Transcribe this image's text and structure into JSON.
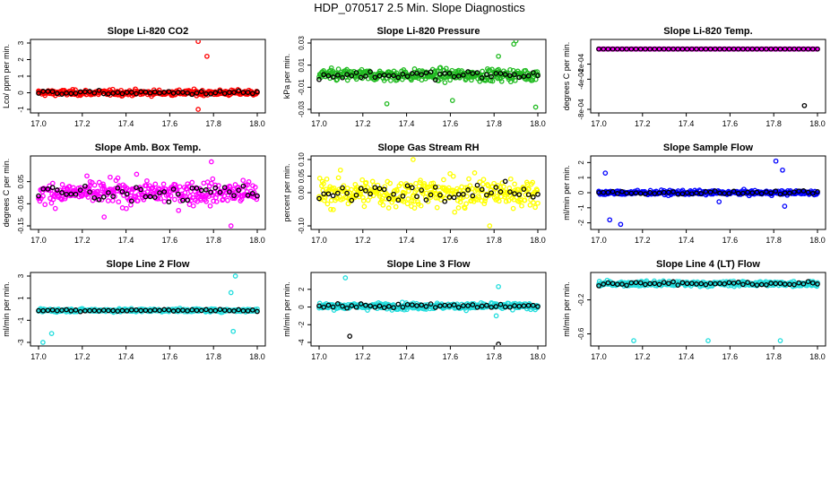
{
  "title": "HDP_070517  2.5 Min. Slope Diagnostics",
  "chart_data": [
    {
      "type": "scatter",
      "title": "Slope Li-820 CO2",
      "ylabel": "Lco/ ppm per min.",
      "xlim": [
        17.0,
        18.0
      ],
      "ylim": [
        -1,
        3
      ],
      "yticks": [
        "-1",
        "0",
        "1",
        "2",
        "3"
      ],
      "xticks": [
        "17.0",
        "17.2",
        "17.4",
        "17.6",
        "17.8",
        "18.0"
      ],
      "color": "#ff0000",
      "center": 0.0,
      "spread": 0.14,
      "outliers": [
        [
          17.73,
          3.1
        ],
        [
          17.77,
          2.2
        ],
        [
          17.73,
          -1.0
        ]
      ]
    },
    {
      "type": "scatter",
      "title": "Slope Li-820 Pressure",
      "ylabel": "kPa per min.",
      "xlim": [
        17.0,
        18.0
      ],
      "ylim": [
        -0.03,
        0.03
      ],
      "yticks": [
        "-0.03",
        "-0.01",
        "0.01",
        "0.03"
      ],
      "xticks": [
        "17.0",
        "17.2",
        "17.4",
        "17.6",
        "17.8",
        "18.0"
      ],
      "color": "#22bb22",
      "center": 0.001,
      "spread": 0.0045,
      "outliers": [
        [
          17.31,
          -0.025
        ],
        [
          17.61,
          -0.022
        ],
        [
          17.9,
          0.032
        ],
        [
          17.89,
          0.029
        ],
        [
          17.99,
          -0.028
        ],
        [
          17.82,
          0.018
        ]
      ]
    },
    {
      "type": "scatter",
      "title": "Slope Li-820 Temp.",
      "ylabel": "degrees C per min.",
      "xlim": [
        17.0,
        18.0
      ],
      "ylim": [
        -0.0008,
        8e-05
      ],
      "yticks": [
        "-8e-04",
        "-4e-04",
        "-2e-04"
      ],
      "xticks": [
        "17.0",
        "17.2",
        "17.4",
        "17.6",
        "17.8",
        "18.0"
      ],
      "color": "#ff00ff",
      "center": 0.0,
      "spread": 0.0,
      "outliers": [
        [
          17.94,
          -0.00075
        ]
      ]
    },
    {
      "type": "scatter",
      "title": "Slope Amb. Box Temp.",
      "ylabel": "degrees C per min.",
      "xlim": [
        17.0,
        18.0
      ],
      "ylim": [
        -0.15,
        0.15
      ],
      "yticks": [
        "-0.15",
        "-0.05",
        "0.05"
      ],
      "xticks": [
        "17.0",
        "17.2",
        "17.4",
        "17.6",
        "17.8",
        "18.0"
      ],
      "color": "#ff00ff",
      "center": 0.0,
      "spread": 0.045,
      "outliers": [
        [
          17.79,
          0.14
        ],
        [
          17.88,
          -0.15
        ],
        [
          17.3,
          -0.11
        ]
      ]
    },
    {
      "type": "scatter",
      "title": "Slope Gas Stream RH",
      "ylabel": "percent per min.",
      "xlim": [
        17.0,
        18.0
      ],
      "ylim": [
        -0.1,
        0.1
      ],
      "yticks": [
        "-0.10",
        "0.00",
        "0.05",
        "0.10"
      ],
      "xticks": [
        "17.0",
        "17.2",
        "17.4",
        "17.6",
        "17.8",
        "18.0"
      ],
      "color": "#ffff00",
      "center": 0.0,
      "spread": 0.038,
      "outliers": [
        [
          17.43,
          0.1
        ],
        [
          17.78,
          -0.1
        ]
      ]
    },
    {
      "type": "scatter",
      "title": "Slope Sample Flow",
      "ylabel": "ml/min per min.",
      "xlim": [
        17.0,
        18.0
      ],
      "ylim": [
        -2.2,
        2.2
      ],
      "yticks": [
        "-2",
        "-1",
        "0",
        "1",
        "2"
      ],
      "xticks": [
        "17.0",
        "17.2",
        "17.4",
        "17.6",
        "17.8",
        "18.0"
      ],
      "color": "#0000ff",
      "center": 0.0,
      "spread": 0.12,
      "outliers": [
        [
          17.05,
          -1.8
        ],
        [
          17.03,
          1.3
        ],
        [
          17.1,
          -2.1
        ],
        [
          17.81,
          2.1
        ],
        [
          17.85,
          -0.9
        ],
        [
          17.55,
          -0.6
        ],
        [
          17.84,
          1.5
        ]
      ]
    },
    {
      "type": "scatter",
      "title": "Slope Line 2 Flow",
      "ylabel": "ml/min per min.",
      "xlim": [
        17.0,
        18.0
      ],
      "ylim": [
        -3,
        3
      ],
      "yticks": [
        "-3",
        "-1",
        "1",
        "3"
      ],
      "xticks": [
        "17.0",
        "17.2",
        "17.4",
        "17.6",
        "17.8",
        "18.0"
      ],
      "color": "#22dddd",
      "center": -0.1,
      "spread": 0.12,
      "outliers": [
        [
          17.02,
          -3.0
        ],
        [
          17.06,
          -2.2
        ],
        [
          17.9,
          3.0
        ],
        [
          17.88,
          1.5
        ],
        [
          17.89,
          -2.0
        ]
      ]
    },
    {
      "type": "scatter",
      "title": "Slope Line 3 Flow",
      "ylabel": "ml/min per min.",
      "xlim": [
        17.0,
        18.0
      ],
      "ylim": [
        -4,
        3.5
      ],
      "yticks": [
        "-4",
        "-2",
        "0",
        "2"
      ],
      "xticks": [
        "17.0",
        "17.2",
        "17.4",
        "17.6",
        "17.8",
        "18.0"
      ],
      "color": "#22dddd",
      "center": 0.1,
      "spread": 0.3,
      "outliers": [
        [
          17.12,
          3.3
        ],
        [
          17.14,
          -3.3
        ],
        [
          17.82,
          2.3
        ],
        [
          17.82,
          -4.2
        ],
        [
          17.81,
          -1.0
        ]
      ]
    },
    {
      "type": "scatter",
      "title": "Slope Line 4 (LT) Flow",
      "ylabel": "ml/min per min.",
      "xlim": [
        17.0,
        18.0
      ],
      "ylim": [
        -0.7,
        0.08
      ],
      "yticks": [
        "-0.6",
        "-0.2"
      ],
      "xticks": [
        "17.0",
        "17.2",
        "17.4",
        "17.6",
        "17.8",
        "18.0"
      ],
      "color": "#22dddd",
      "center": -0.01,
      "spread": 0.025,
      "outliers": [
        [
          17.16,
          -0.68
        ],
        [
          17.5,
          -0.68
        ],
        [
          17.83,
          -0.68
        ]
      ]
    }
  ]
}
